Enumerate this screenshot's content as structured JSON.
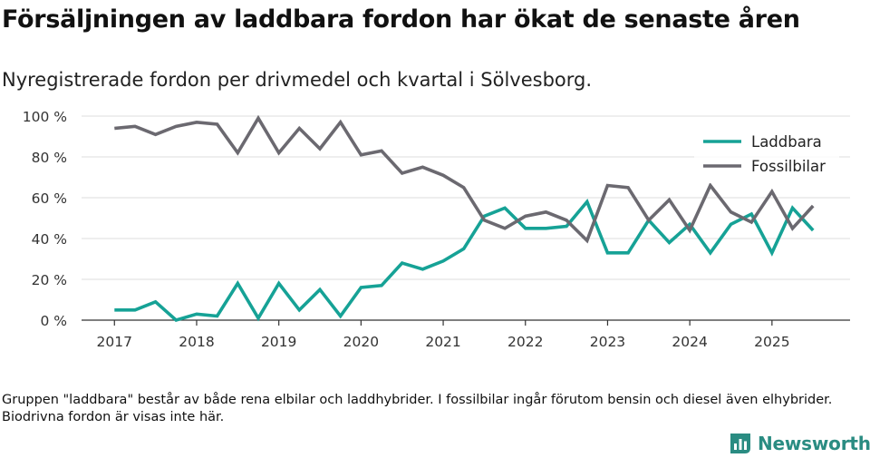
{
  "header": {
    "title": "Försäljningen av laddbara fordon har ökat de senaste åren",
    "subtitle": "Nyregistrerade fordon per drivmedel och kvartal i Sölvesborg."
  },
  "footer": {
    "note": "Gruppen \"laddbara\" består av både rena elbilar och laddhybrider. I fossilbilar ingår förutom bensin och diesel även elhybrider. Biodrivna fordon är visas inte här.",
    "brand": "Newsworthy",
    "brand_icon": "newsworthy-logo-icon"
  },
  "chart_data": {
    "type": "line",
    "title": "Försäljningen av laddbara fordon har ökat de senaste åren",
    "subtitle": "Nyregistrerade fordon per drivmedel och kvartal i Sölvesborg.",
    "xlabel": "",
    "ylabel": "",
    "x": [
      2017.0,
      2017.25,
      2017.5,
      2017.75,
      2018.0,
      2018.25,
      2018.5,
      2018.75,
      2019.0,
      2019.25,
      2019.5,
      2019.75,
      2020.0,
      2020.25,
      2020.5,
      2020.75,
      2021.0,
      2021.25,
      2021.5,
      2021.75,
      2022.0,
      2022.25,
      2022.5,
      2022.75,
      2023.0,
      2023.25,
      2023.5,
      2023.75,
      2024.0,
      2024.25,
      2024.5,
      2024.75,
      2025.0,
      2025.25,
      2025.5
    ],
    "xlim": [
      2016.6,
      2025.95
    ],
    "ylim": [
      0,
      100
    ],
    "yticks": [
      0,
      20,
      40,
      60,
      80,
      100
    ],
    "ytick_labels": [
      "0 %",
      "20 %",
      "40 %",
      "60 %",
      "80 %",
      "100 %"
    ],
    "xticks": [
      2017,
      2018,
      2019,
      2020,
      2021,
      2022,
      2023,
      2024,
      2025
    ],
    "xtick_labels": [
      "2017",
      "2018",
      "2019",
      "2020",
      "2021",
      "2022",
      "2023",
      "2024",
      "2025"
    ],
    "grid": true,
    "legend_position": "top-right",
    "series": [
      {
        "name": "Laddbara",
        "color": "#16a296",
        "values": [
          5,
          5,
          9,
          0,
          3,
          2,
          18,
          1,
          18,
          5,
          15,
          2,
          16,
          17,
          28,
          25,
          29,
          35,
          51,
          55,
          45,
          45,
          46,
          58,
          33,
          33,
          49,
          38,
          47,
          33,
          47,
          52,
          33,
          55,
          44
        ]
      },
      {
        "name": "Fossilbilar",
        "color": "#6b6970",
        "values": [
          94,
          95,
          91,
          95,
          97,
          96,
          82,
          99,
          82,
          94,
          84,
          97,
          81,
          83,
          72,
          75,
          71,
          65,
          49,
          45,
          51,
          53,
          49,
          39,
          66,
          65,
          49,
          59,
          44,
          66,
          53,
          48,
          63,
          45,
          56
        ]
      }
    ]
  }
}
